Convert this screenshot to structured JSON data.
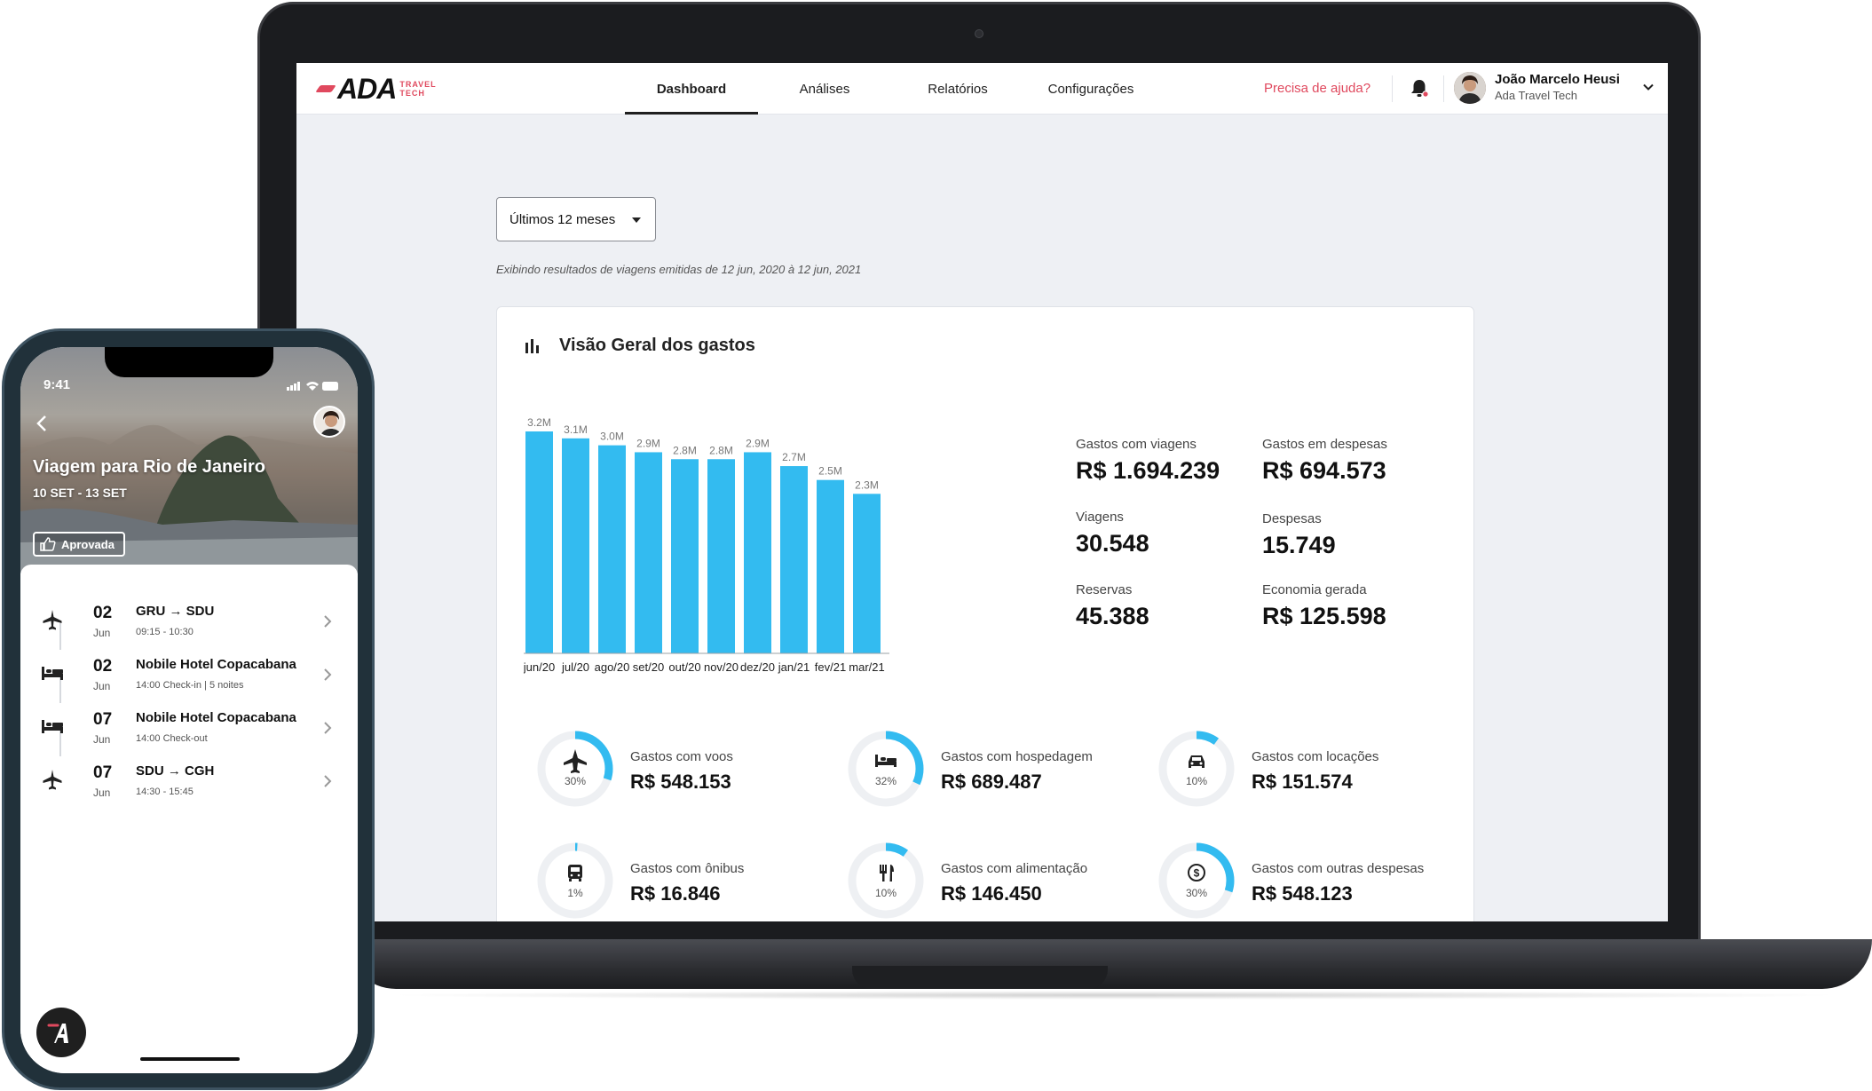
{
  "nav": {
    "logo": "ADA",
    "logo_sub_1": "TRAVEL",
    "logo_sub_2": "TECH",
    "tabs": [
      "Dashboard",
      "Análises",
      "Relatórios",
      "Configurações"
    ],
    "active_tab": "Dashboard",
    "help": "Precisa de ajuda?",
    "user_name": "João Marcelo Heusi",
    "user_org": "Ada Travel Tech"
  },
  "filter": {
    "period": "Últimos 12 meses",
    "note": "Exibindo resultados de viagens emitidas de 12 jun, 2020 à 12 jun, 2021"
  },
  "card": {
    "title": "Visão Geral dos gastos"
  },
  "chart_data": {
    "type": "bar",
    "categories": [
      "jun/20",
      "jul/20",
      "ago/20",
      "set/20",
      "out/20",
      "nov/20",
      "dez/20",
      "jan/21",
      "fev/21",
      "mar/21"
    ],
    "values": [
      3.2,
      3.1,
      3.0,
      2.9,
      2.8,
      2.8,
      2.9,
      2.7,
      2.5,
      2.3
    ],
    "data_labels": [
      "3.2M",
      "3.1M",
      "3.0M",
      "2.9M",
      "2.8M",
      "2.8M",
      "2.9M",
      "2.7M",
      "2.5M",
      "2.3M"
    ],
    "title": "",
    "xlabel": "",
    "ylabel": "",
    "ylim": [
      0,
      3.2
    ],
    "grid": false,
    "bar_color": "#33bbf0"
  },
  "stats": [
    {
      "label": "Gastos com viagens",
      "value": "R$ 1.694.239"
    },
    {
      "label": "Gastos em despesas",
      "value": "R$ 694.573"
    },
    {
      "label": "Viagens",
      "value": "30.548"
    },
    {
      "label": "Despesas",
      "value": "15.749"
    },
    {
      "label": "Reservas",
      "value": "45.388"
    },
    {
      "label": "Economia gerada",
      "value": "R$ 125.598"
    }
  ],
  "categories": [
    {
      "label": "Gastos com voos",
      "value": "R$ 548.153",
      "percent_text": "30%",
      "percent": 30,
      "icon": "plane-icon"
    },
    {
      "label": "Gastos com hospedagem",
      "value": "R$ 689.487",
      "percent_text": "32%",
      "percent": 32,
      "icon": "bed-icon"
    },
    {
      "label": "Gastos com locações",
      "value": "R$ 151.574",
      "percent_text": "10%",
      "percent": 10,
      "icon": "car-icon"
    },
    {
      "label": "Gastos com ônibus",
      "value": "R$ 16.846",
      "percent_text": "1%",
      "percent": 1,
      "icon": "bus-icon"
    },
    {
      "label": "Gastos com alimentação",
      "value": "R$ 146.450",
      "percent_text": "10%",
      "percent": 10,
      "icon": "cutlery-icon"
    },
    {
      "label": "Gastos com outras despesas",
      "value": "R$ 548.123",
      "percent_text": "30%",
      "percent": 30,
      "icon": "dollar-icon"
    }
  ],
  "colors": {
    "accent": "#e0495e",
    "bar": "#33bbf0",
    "donut_track": "#eef0f3"
  },
  "phone": {
    "time": "9:41",
    "trip_title": "Viagem para Rio de Janeiro",
    "trip_dates": "10 SET - 13 SET",
    "status": "Aprovada",
    "items": [
      {
        "day": "02",
        "month": "Jun",
        "title": "GRU → SDU",
        "sub": "09:15 - 10:30",
        "icon": "plane-icon"
      },
      {
        "day": "02",
        "month": "Jun",
        "title": "Nobile Hotel Copacabana",
        "sub": "14:00 Check-in | 5 noites",
        "icon": "bed-icon"
      },
      {
        "day": "07",
        "month": "Jun",
        "title": "Nobile Hotel Copacabana",
        "sub": "14:00 Check-out",
        "icon": "bed-icon"
      },
      {
        "day": "07",
        "month": "Jun",
        "title": "SDU → CGH",
        "sub": "14:30 - 15:45",
        "icon": "plane-icon"
      }
    ]
  }
}
